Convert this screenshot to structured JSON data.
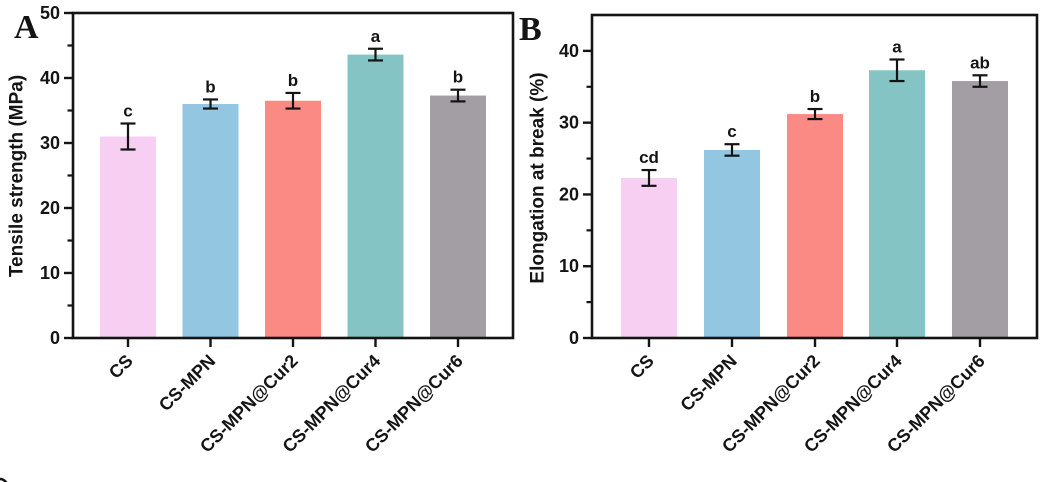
{
  "figure": {
    "background": "#ffffff",
    "axis_color": "#141414",
    "error_bar_color": "#141414",
    "text_color": "#141414"
  },
  "chart_data": [
    {
      "type": "bar",
      "panel_label": "A",
      "title": "",
      "xlabel": "",
      "ylabel": "Tensile strength (MPa)",
      "categories": [
        "CS",
        "CS-MPN",
        "CS-MPN@Cur2",
        "CS-MPN@Cur4",
        "CS-MPN@Cur6"
      ],
      "values": [
        31.0,
        36.0,
        36.5,
        43.6,
        37.3
      ],
      "errors": [
        2.0,
        0.7,
        1.2,
        0.9,
        0.9
      ],
      "sig_letters": [
        "c",
        "b",
        "b",
        "a",
        "b"
      ],
      "bar_colors": [
        "#f6cff2",
        "#92c6e1",
        "#fc8a84",
        "#85c4c4",
        "#a29ea3"
      ],
      "ylim": [
        0,
        50
      ],
      "yticks": [
        0,
        10,
        20,
        30,
        40,
        50
      ],
      "minor_yticks": [
        5,
        15,
        25,
        35,
        45
      ],
      "grid": false,
      "legend_position": "none"
    },
    {
      "type": "bar",
      "panel_label": "B",
      "title": "",
      "xlabel": "",
      "ylabel": "Elongation at break (%)",
      "categories": [
        "CS",
        "CS-MPN",
        "CS-MPN@Cur2",
        "CS-MPN@Cur4",
        "CS-MPN@Cur6"
      ],
      "values": [
        22.3,
        26.2,
        31.2,
        37.3,
        35.8
      ],
      "errors": [
        1.1,
        0.8,
        0.7,
        1.5,
        0.8
      ],
      "sig_letters": [
        "cd",
        "c",
        "b",
        "a",
        "ab"
      ],
      "bar_colors": [
        "#f6cff2",
        "#92c6e1",
        "#fc8a84",
        "#85c4c4",
        "#a29ea3"
      ],
      "ylim": [
        0,
        45
      ],
      "yticks": [
        0,
        10,
        20,
        30,
        40
      ],
      "minor_yticks": [
        5,
        15,
        25,
        35
      ],
      "grid": false,
      "legend_position": "none"
    }
  ]
}
